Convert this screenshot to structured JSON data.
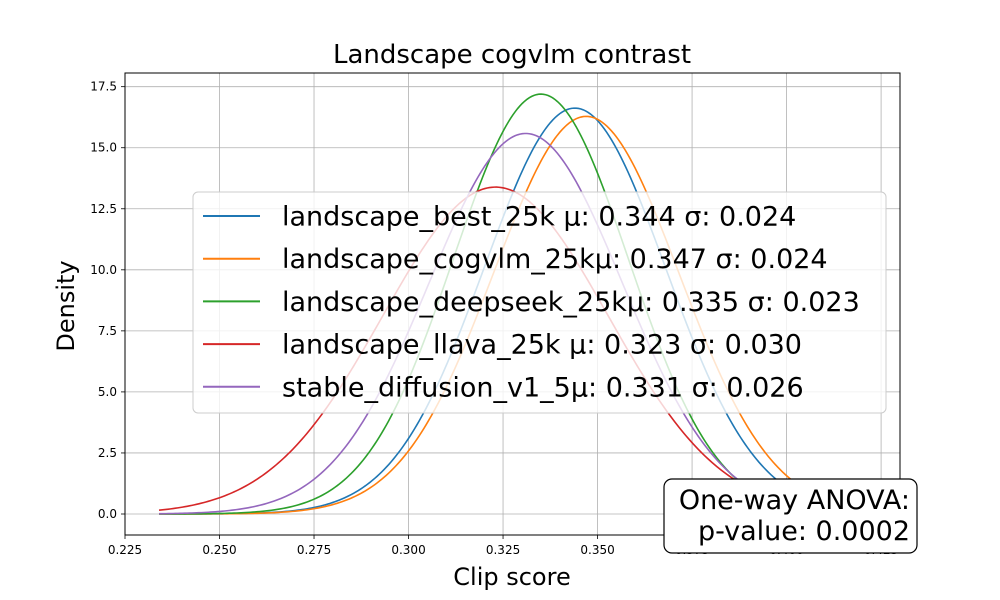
{
  "chart_data": {
    "type": "line",
    "title": "Landscape cogvlm contrast",
    "xlabel": "Clip score",
    "ylabel": "Density",
    "xlim": [
      0.225,
      0.43
    ],
    "ylim": [
      -0.86,
      18.06
    ],
    "x_ticks": [
      "0.225",
      "0.250",
      "0.275",
      "0.300",
      "0.325",
      "0.350",
      "0.375",
      "0.400",
      "0.425"
    ],
    "y_ticks": [
      "0.0",
      "2.5",
      "5.0",
      "7.5",
      "10.0",
      "12.5",
      "15.0",
      "17.5"
    ],
    "grid": true,
    "legend_position": "upper-center",
    "curve_type": "normal density",
    "x_range": [
      0.234,
      0.42
    ],
    "series": [
      {
        "name": "landscape_best_25k",
        "mean": 0.344,
        "std": 0.024,
        "legend_label": "landscape_best_25k  μ: 0.344 σ: 0.024",
        "color": "#1f77b4"
      },
      {
        "name": "landscape_cogvlm_25k",
        "mean": 0.347,
        "std": 0.0245,
        "legend_label": "landscape_cogvlm_25kμ: 0.347 σ: 0.024",
        "color": "#ff7f0e"
      },
      {
        "name": "landscape_deepseek_25k",
        "mean": 0.335,
        "std": 0.0232,
        "legend_label": "landscape_deepseek_25kμ: 0.335 σ: 0.023",
        "color": "#2ca02c"
      },
      {
        "name": "landscape_llava_25k",
        "mean": 0.323,
        "std": 0.0298,
        "legend_label": "landscape_llava_25k μ: 0.323 σ: 0.030",
        "color": "#d62728"
      },
      {
        "name": "stable_diffusion_v1_5",
        "mean": 0.331,
        "std": 0.0256,
        "legend_label": "stable_diffusion_v1_5μ: 0.331 σ: 0.026",
        "color": "#9467bd"
      }
    ],
    "annotation": {
      "line1": "One-way ANOVA:",
      "line2": "p-value: 0.0002"
    }
  }
}
